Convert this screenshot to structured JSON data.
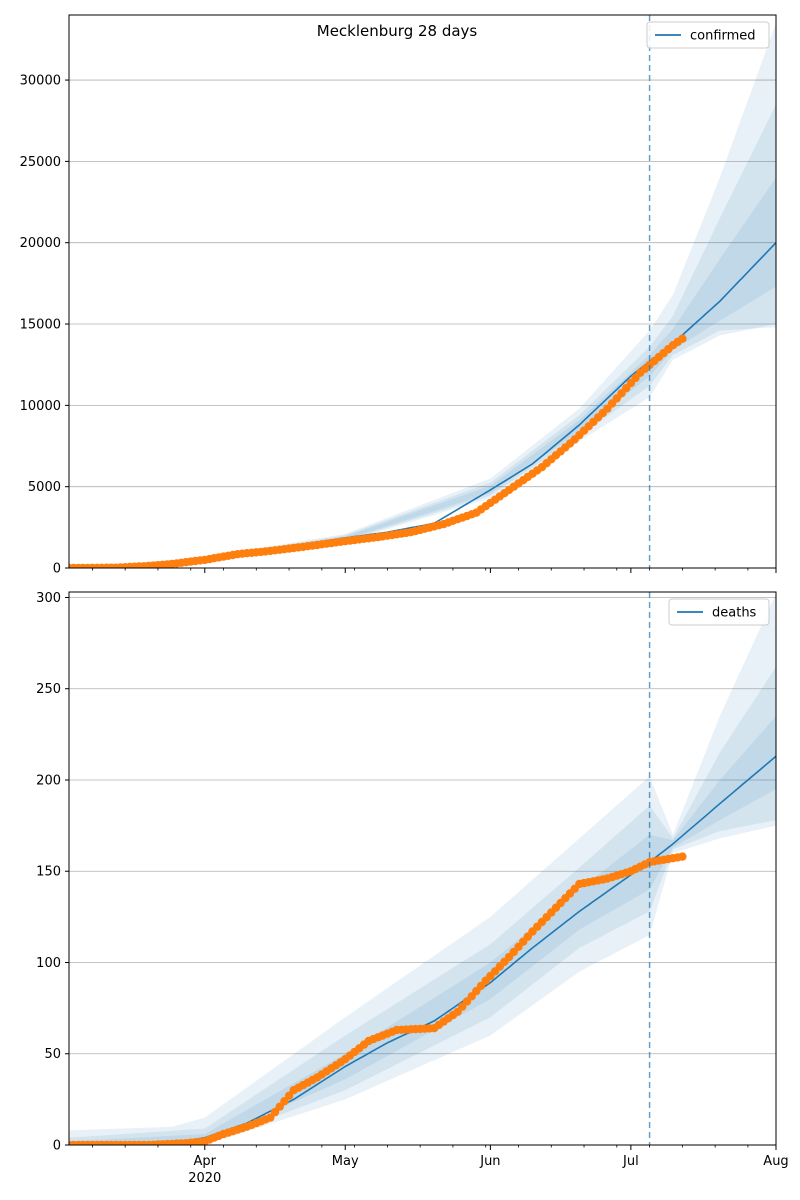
{
  "figure": {
    "title": "Mecklenburg 28 days"
  },
  "colors": {
    "line": "#1f77b4",
    "band": "#1f77b4",
    "observed": "#ff7f0e",
    "grid": "#b0b0b0",
    "today": "#1f77b4"
  },
  "x_axis": {
    "range": [
      "2020-03-03",
      "2020-08-01"
    ],
    "major_ticks": [
      {
        "date": "2020-04-01",
        "label": "Apr",
        "sublabel": "2020"
      },
      {
        "date": "2020-05-01",
        "label": "May",
        "sublabel": ""
      },
      {
        "date": "2020-06-01",
        "label": "Jun",
        "sublabel": ""
      },
      {
        "date": "2020-07-01",
        "label": "Jul",
        "sublabel": ""
      },
      {
        "date": "2020-08-01",
        "label": "Aug",
        "sublabel": ""
      }
    ]
  },
  "chart_data": [
    {
      "type": "line",
      "legend": "confirmed",
      "legend_position": "top-right",
      "grid": "horizontal",
      "ylim": [
        0,
        34000
      ],
      "yticks": [
        0,
        5000,
        10000,
        15000,
        20000,
        25000,
        30000
      ],
      "today": "2020-07-05",
      "forecast_median": [
        [
          "2020-03-03",
          0
        ],
        [
          "2020-03-15",
          20
        ],
        [
          "2020-03-25",
          200
        ],
        [
          "2020-04-01",
          500
        ],
        [
          "2020-04-10",
          900
        ],
        [
          "2020-04-20",
          1350
        ],
        [
          "2020-05-01",
          1850
        ],
        [
          "2020-05-10",
          2200
        ],
        [
          "2020-05-20",
          2750
        ],
        [
          "2020-06-01",
          4800
        ],
        [
          "2020-06-10",
          6400
        ],
        [
          "2020-06-20",
          8800
        ],
        [
          "2020-07-01",
          11800
        ],
        [
          "2020-07-05",
          12700
        ],
        [
          "2020-07-10",
          13800
        ],
        [
          "2020-07-20",
          16400
        ],
        [
          "2020-08-01",
          20000
        ]
      ],
      "bands": [
        {
          "lower": [
            [
              "2020-03-03",
              0
            ],
            [
              "2020-04-01",
              400
            ],
            [
              "2020-05-01",
              1600
            ],
            [
              "2020-06-01",
              4300
            ],
            [
              "2020-06-20",
              7800
            ],
            [
              "2020-07-05",
              10500
            ],
            [
              "2020-07-10",
              12800
            ],
            [
              "2020-07-20",
              14300
            ],
            [
              "2020-08-01",
              15000
            ]
          ],
          "upper": [
            [
              "2020-03-03",
              0
            ],
            [
              "2020-04-01",
              650
            ],
            [
              "2020-05-01",
              2100
            ],
            [
              "2020-06-01",
              5500
            ],
            [
              "2020-06-20",
              9800
            ],
            [
              "2020-07-05",
              14600
            ],
            [
              "2020-07-10",
              16800
            ],
            [
              "2020-07-20",
              24000
            ],
            [
              "2020-08-01",
              33500
            ]
          ]
        },
        {
          "lower": [
            [
              "2020-03-03",
              0
            ],
            [
              "2020-04-01",
              430
            ],
            [
              "2020-05-01",
              1680
            ],
            [
              "2020-06-01",
              4450
            ],
            [
              "2020-06-20",
              8100
            ],
            [
              "2020-07-05",
              11200
            ],
            [
              "2020-07-10",
              13100
            ],
            [
              "2020-07-20",
              14600
            ],
            [
              "2020-08-01",
              14800
            ]
          ],
          "upper": [
            [
              "2020-03-03",
              0
            ],
            [
              "2020-04-01",
              600
            ],
            [
              "2020-05-01",
              2020
            ],
            [
              "2020-06-01",
              5250
            ],
            [
              "2020-06-20",
              9400
            ],
            [
              "2020-07-05",
              13600
            ],
            [
              "2020-07-10",
              15500
            ],
            [
              "2020-07-20",
              21500
            ],
            [
              "2020-08-01",
              28500
            ]
          ]
        },
        {
          "lower": [
            [
              "2020-03-03",
              0
            ],
            [
              "2020-04-01",
              460
            ],
            [
              "2020-05-01",
              1750
            ],
            [
              "2020-06-01",
              4600
            ],
            [
              "2020-06-20",
              8400
            ],
            [
              "2020-07-05",
              11800
            ],
            [
              "2020-07-10",
              13400
            ],
            [
              "2020-07-20",
              15200
            ],
            [
              "2020-08-01",
              17300
            ]
          ],
          "upper": [
            [
              "2020-03-03",
              0
            ],
            [
              "2020-04-01",
              560
            ],
            [
              "2020-05-01",
              1950
            ],
            [
              "2020-06-01",
              5050
            ],
            [
              "2020-06-20",
              9100
            ],
            [
              "2020-07-05",
              13100
            ],
            [
              "2020-07-10",
              14700
            ],
            [
              "2020-07-20",
              19000
            ],
            [
              "2020-08-01",
              24000
            ]
          ]
        }
      ],
      "observed": [
        [
          "2020-03-03",
          0
        ],
        [
          "2020-03-13",
          20
        ],
        [
          "2020-03-20",
          120
        ],
        [
          "2020-03-25",
          250
        ],
        [
          "2020-04-01",
          500
        ],
        [
          "2020-04-08",
          850
        ],
        [
          "2020-04-15",
          1050
        ],
        [
          "2020-04-22",
          1300
        ],
        [
          "2020-05-01",
          1650
        ],
        [
          "2020-05-08",
          1900
        ],
        [
          "2020-05-15",
          2200
        ],
        [
          "2020-05-22",
          2700
        ],
        [
          "2020-05-29",
          3400
        ],
        [
          "2020-06-05",
          4800
        ],
        [
          "2020-06-12",
          6200
        ],
        [
          "2020-06-19",
          7900
        ],
        [
          "2020-06-26",
          9800
        ],
        [
          "2020-07-03",
          12000
        ],
        [
          "2020-07-10",
          13700
        ],
        [
          "2020-07-12",
          14100
        ]
      ]
    },
    {
      "type": "line",
      "legend": "deaths",
      "legend_position": "top-right",
      "grid": "horizontal",
      "ylim": [
        0,
        303
      ],
      "yticks": [
        0,
        50,
        100,
        150,
        200,
        250,
        300
      ],
      "today": "2020-07-05",
      "forecast_median": [
        [
          "2020-03-03",
          0
        ],
        [
          "2020-03-25",
          1
        ],
        [
          "2020-04-01",
          4
        ],
        [
          "2020-04-10",
          12
        ],
        [
          "2020-04-20",
          25
        ],
        [
          "2020-05-01",
          43
        ],
        [
          "2020-05-10",
          56
        ],
        [
          "2020-05-20",
          68
        ],
        [
          "2020-06-01",
          89
        ],
        [
          "2020-06-10",
          108
        ],
        [
          "2020-06-20",
          128
        ],
        [
          "2020-07-01",
          148
        ],
        [
          "2020-07-05",
          155
        ],
        [
          "2020-07-10",
          165
        ],
        [
          "2020-07-20",
          187
        ],
        [
          "2020-08-01",
          213
        ]
      ],
      "bands": [
        {
          "lower": [
            [
              "2020-03-03",
              0
            ],
            [
              "2020-04-01",
              0
            ],
            [
              "2020-05-01",
              25
            ],
            [
              "2020-06-01",
              60
            ],
            [
              "2020-06-20",
              95
            ],
            [
              "2020-07-05",
              115
            ],
            [
              "2020-07-10",
              160
            ],
            [
              "2020-07-20",
              168
            ],
            [
              "2020-08-01",
              175
            ]
          ],
          "upper": [
            [
              "2020-03-03",
              8
            ],
            [
              "2020-03-25",
              10
            ],
            [
              "2020-04-01",
              15
            ],
            [
              "2020-05-01",
              70
            ],
            [
              "2020-06-01",
              125
            ],
            [
              "2020-06-20",
              168
            ],
            [
              "2020-07-05",
              202
            ],
            [
              "2020-07-10",
              170
            ],
            [
              "2020-07-20",
              235
            ],
            [
              "2020-08-01",
              302
            ]
          ]
        },
        {
          "lower": [
            [
              "2020-03-03",
              0
            ],
            [
              "2020-04-01",
              1
            ],
            [
              "2020-05-01",
              30
            ],
            [
              "2020-06-01",
              70
            ],
            [
              "2020-06-20",
              108
            ],
            [
              "2020-07-05",
              128
            ],
            [
              "2020-07-10",
              162
            ],
            [
              "2020-07-20",
              172
            ],
            [
              "2020-08-01",
              178
            ]
          ],
          "upper": [
            [
              "2020-03-03",
              4
            ],
            [
              "2020-04-01",
              9
            ],
            [
              "2020-05-01",
              60
            ],
            [
              "2020-06-01",
              110
            ],
            [
              "2020-06-20",
              152
            ],
            [
              "2020-07-05",
              186
            ],
            [
              "2020-07-10",
              168
            ],
            [
              "2020-07-20",
              215
            ],
            [
              "2020-08-01",
              262
            ]
          ]
        },
        {
          "lower": [
            [
              "2020-03-03",
              0
            ],
            [
              "2020-04-01",
              2
            ],
            [
              "2020-05-01",
              36
            ],
            [
              "2020-06-01",
              80
            ],
            [
              "2020-06-20",
              118
            ],
            [
              "2020-07-05",
              140
            ],
            [
              "2020-07-10",
              163
            ],
            [
              "2020-07-20",
              178
            ],
            [
              "2020-08-01",
              195
            ]
          ],
          "upper": [
            [
              "2020-03-03",
              2
            ],
            [
              "2020-04-01",
              6
            ],
            [
              "2020-05-01",
              50
            ],
            [
              "2020-06-01",
              100
            ],
            [
              "2020-06-20",
              140
            ],
            [
              "2020-07-05",
              170
            ],
            [
              "2020-07-10",
              167
            ],
            [
              "2020-07-20",
              200
            ],
            [
              "2020-08-01",
              235
            ]
          ]
        }
      ],
      "observed": [
        [
          "2020-03-03",
          0
        ],
        [
          "2020-03-20",
          0
        ],
        [
          "2020-03-28",
          1
        ],
        [
          "2020-04-01",
          2
        ],
        [
          "2020-04-05",
          6
        ],
        [
          "2020-04-10",
          10
        ],
        [
          "2020-04-15",
          15
        ],
        [
          "2020-04-20",
          30
        ],
        [
          "2020-04-25",
          37
        ],
        [
          "2020-05-01",
          47
        ],
        [
          "2020-05-06",
          57
        ],
        [
          "2020-05-12",
          63
        ],
        [
          "2020-05-20",
          64
        ],
        [
          "2020-05-25",
          73
        ],
        [
          "2020-05-31",
          90
        ],
        [
          "2020-06-05",
          103
        ],
        [
          "2020-06-10",
          117
        ],
        [
          "2020-06-15",
          130
        ],
        [
          "2020-06-20",
          143
        ],
        [
          "2020-06-26",
          146
        ],
        [
          "2020-07-01",
          150
        ],
        [
          "2020-07-05",
          155
        ],
        [
          "2020-07-12",
          158
        ]
      ]
    }
  ]
}
